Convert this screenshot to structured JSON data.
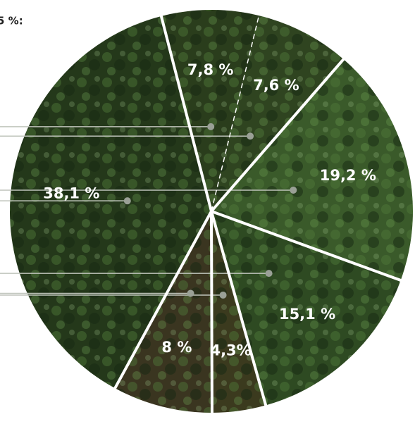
{
  "chart_data": {
    "type": "pie",
    "title": "5 %:",
    "categories": [
      null,
      null,
      null,
      null,
      null,
      null,
      null
    ],
    "values": [
      7.8,
      7.6,
      19.2,
      15.1,
      4.3,
      8,
      38.1
    ],
    "value_labels": [
      "7,8 %",
      "7,6 %",
      "19,2 %",
      "15,1 %",
      "4,3%",
      "8 %",
      "38,1 %"
    ],
    "colors": [
      "#2a3d1c",
      "#2f4420",
      "#3a5a2a",
      "#2e4a22",
      "#3b3a1e",
      "#3a3520",
      "#24381a"
    ]
  }
}
